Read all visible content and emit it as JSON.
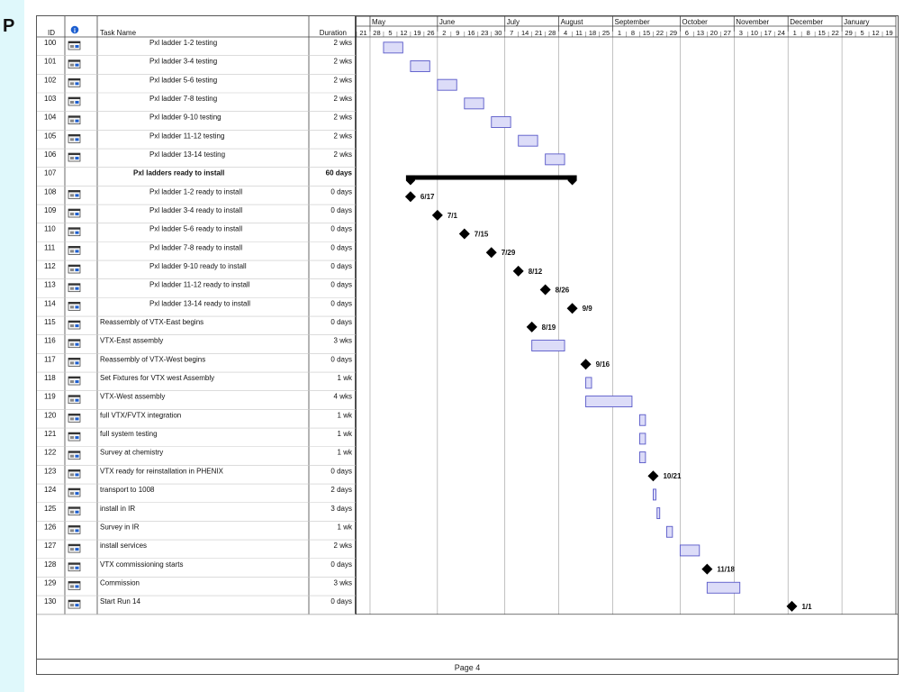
{
  "left_strip": {
    "letter": "P"
  },
  "page": {
    "label": "Page 4"
  },
  "table": {
    "header": {
      "id": "ID",
      "task_name": "Task Name",
      "duration": "Duration"
    },
    "rows": [
      {
        "id": "100",
        "name": "Pxl ladder 1-2 testing",
        "indent": 2,
        "bold": false,
        "duration": "2 wks"
      },
      {
        "id": "101",
        "name": "Pxl ladder 3-4 testing",
        "indent": 2,
        "bold": false,
        "duration": "2 wks"
      },
      {
        "id": "102",
        "name": "Pxl ladder 5-6 testing",
        "indent": 2,
        "bold": false,
        "duration": "2 wks"
      },
      {
        "id": "103",
        "name": "Pxl ladder 7-8 testing",
        "indent": 2,
        "bold": false,
        "duration": "2 wks"
      },
      {
        "id": "104",
        "name": "Pxl ladder 9-10 testing",
        "indent": 2,
        "bold": false,
        "duration": "2 wks"
      },
      {
        "id": "105",
        "name": "Pxl ladder 11-12 testing",
        "indent": 2,
        "bold": false,
        "duration": "2 wks"
      },
      {
        "id": "106",
        "name": "Pxl ladder 13-14 testing",
        "indent": 2,
        "bold": false,
        "duration": "2 wks"
      },
      {
        "id": "107",
        "name": "Pxl ladders ready to install",
        "indent": 1,
        "bold": true,
        "duration": "60 days",
        "summary": true
      },
      {
        "id": "108",
        "name": "Pxl ladder 1-2 ready to install",
        "indent": 2,
        "bold": false,
        "duration": "0 days"
      },
      {
        "id": "109",
        "name": "Pxl ladder 3-4 ready to install",
        "indent": 2,
        "bold": false,
        "duration": "0 days"
      },
      {
        "id": "110",
        "name": "Pxl ladder 5-6  ready to install",
        "indent": 2,
        "bold": false,
        "duration": "0 days"
      },
      {
        "id": "111",
        "name": "Pxl ladder 7-8  ready to install",
        "indent": 2,
        "bold": false,
        "duration": "0 days"
      },
      {
        "id": "112",
        "name": "Pxl ladder 9-10  ready to install",
        "indent": 2,
        "bold": false,
        "duration": "0 days"
      },
      {
        "id": "113",
        "name": "Pxl ladder 11-12  ready to install",
        "indent": 2,
        "bold": false,
        "duration": "0 days"
      },
      {
        "id": "114",
        "name": "Pxl ladder 13-14  ready to install",
        "indent": 2,
        "bold": false,
        "duration": "0 days"
      },
      {
        "id": "115",
        "name": "Reassembly of VTX-East begins",
        "indent": 0,
        "bold": false,
        "duration": "0 days"
      },
      {
        "id": "116",
        "name": "VTX-East assembly",
        "indent": 0,
        "bold": false,
        "duration": "3 wks"
      },
      {
        "id": "117",
        "name": "Reassembly of VTX-West begins",
        "indent": 0,
        "bold": false,
        "duration": "0 days"
      },
      {
        "id": "118",
        "name": "Set Fixtures for VTX west Assembly",
        "indent": 0,
        "bold": false,
        "duration": "1 wk"
      },
      {
        "id": "119",
        "name": "VTX-West assembly",
        "indent": 0,
        "bold": false,
        "duration": "4 wks"
      },
      {
        "id": "120",
        "name": "full VTX/FVTX integration",
        "indent": 0,
        "bold": false,
        "duration": "1 wk"
      },
      {
        "id": "121",
        "name": "full system testing",
        "indent": 0,
        "bold": false,
        "duration": "1 wk"
      },
      {
        "id": "122",
        "name": "Survey at chemistry",
        "indent": 0,
        "bold": false,
        "duration": "1 wk"
      },
      {
        "id": "123",
        "name": "VTX ready for reinstallation in PHENIX",
        "indent": 0,
        "bold": false,
        "duration": "0 days"
      },
      {
        "id": "124",
        "name": "transport to 1008",
        "indent": 0,
        "bold": false,
        "duration": "2 days"
      },
      {
        "id": "125",
        "name": "install in IR",
        "indent": 0,
        "bold": false,
        "duration": "3 days"
      },
      {
        "id": "126",
        "name": "Survey in IR",
        "indent": 0,
        "bold": false,
        "duration": "1 wk"
      },
      {
        "id": "127",
        "name": "install services",
        "indent": 0,
        "bold": false,
        "duration": "2 wks"
      },
      {
        "id": "128",
        "name": "VTX  commissioning starts",
        "indent": 0,
        "bold": false,
        "duration": "0 days"
      },
      {
        "id": "129",
        "name": "Commission",
        "indent": 0,
        "bold": false,
        "duration": "3 wks"
      },
      {
        "id": "130",
        "name": "Start Run 14",
        "indent": 0,
        "bold": false,
        "duration": "0 days"
      }
    ]
  },
  "timescale": {
    "months": [
      "May",
      "June",
      "July",
      "August",
      "September",
      "October",
      "November",
      "December",
      "January"
    ],
    "week_starts": [
      "21",
      "28",
      "5",
      "12",
      "19",
      "26",
      "2",
      "9",
      "16",
      "23",
      "30",
      "7",
      "14",
      "21",
      "28",
      "4",
      "11",
      "18",
      "25",
      "1",
      "8",
      "15",
      "22",
      "29",
      "6",
      "13",
      "20",
      "27",
      "3",
      "10",
      "17",
      "24",
      "1",
      "8",
      "15",
      "22",
      "29",
      "5",
      "12",
      "19"
    ]
  },
  "colors": {
    "bar_fill": "#dcdcf8",
    "bar_stroke": "#5858c8",
    "milestone": "#000000",
    "summary": "#000000",
    "grid": "#999999",
    "row_line": "#c8c8c8"
  },
  "chart_data": {
    "type": "gantt",
    "tasks": [
      {
        "id": "100",
        "kind": "task",
        "start": "2013-06-03",
        "end": "2013-06-14"
      },
      {
        "id": "101",
        "kind": "task",
        "start": "2013-06-17",
        "end": "2013-06-28"
      },
      {
        "id": "102",
        "kind": "task",
        "start": "2013-07-01",
        "end": "2013-07-12"
      },
      {
        "id": "103",
        "kind": "task",
        "start": "2013-07-15",
        "end": "2013-07-26"
      },
      {
        "id": "104",
        "kind": "task",
        "start": "2013-07-29",
        "end": "2013-08-09"
      },
      {
        "id": "105",
        "kind": "task",
        "start": "2013-08-12",
        "end": "2013-08-23"
      },
      {
        "id": "106",
        "kind": "task",
        "start": "2013-08-26",
        "end": "2013-09-06"
      },
      {
        "id": "107",
        "kind": "summary",
        "start": "2013-06-17",
        "end": "2013-09-09"
      },
      {
        "id": "108",
        "kind": "milestone",
        "date": "2013-06-17",
        "label": "6/17"
      },
      {
        "id": "109",
        "kind": "milestone",
        "date": "2013-07-01",
        "label": "7/1"
      },
      {
        "id": "110",
        "kind": "milestone",
        "date": "2013-07-15",
        "label": "7/15"
      },
      {
        "id": "111",
        "kind": "milestone",
        "date": "2013-07-29",
        "label": "7/29"
      },
      {
        "id": "112",
        "kind": "milestone",
        "date": "2013-08-12",
        "label": "8/12"
      },
      {
        "id": "113",
        "kind": "milestone",
        "date": "2013-08-26",
        "label": "8/26"
      },
      {
        "id": "114",
        "kind": "milestone",
        "date": "2013-09-09",
        "label": "9/9"
      },
      {
        "id": "115",
        "kind": "milestone",
        "date": "2013-08-19",
        "label": "8/19"
      },
      {
        "id": "116",
        "kind": "task",
        "start": "2013-08-19",
        "end": "2013-09-06"
      },
      {
        "id": "117",
        "kind": "milestone",
        "date": "2013-09-16",
        "label": "9/16"
      },
      {
        "id": "118",
        "kind": "task",
        "start": "2013-09-16",
        "end": "2013-09-20"
      },
      {
        "id": "119",
        "kind": "task",
        "start": "2013-09-16",
        "end": "2013-10-11"
      },
      {
        "id": "120",
        "kind": "task",
        "start": "2013-10-14",
        "end": "2013-10-18"
      },
      {
        "id": "121",
        "kind": "task",
        "start": "2013-10-14",
        "end": "2013-10-18"
      },
      {
        "id": "122",
        "kind": "task",
        "start": "2013-10-14",
        "end": "2013-10-18"
      },
      {
        "id": "123",
        "kind": "milestone",
        "date": "2013-10-21",
        "label": "10/21"
      },
      {
        "id": "124",
        "kind": "task",
        "start": "2013-10-21",
        "end": "2013-10-22"
      },
      {
        "id": "125",
        "kind": "task",
        "start": "2013-10-23",
        "end": "2013-10-25"
      },
      {
        "id": "126",
        "kind": "task",
        "start": "2013-10-28",
        "end": "2013-11-01"
      },
      {
        "id": "127",
        "kind": "task",
        "start": "2013-11-04",
        "end": "2013-11-15"
      },
      {
        "id": "128",
        "kind": "milestone",
        "date": "2013-11-18",
        "label": "11/18"
      },
      {
        "id": "129",
        "kind": "task",
        "start": "2013-11-18",
        "end": "2013-12-06"
      },
      {
        "id": "130",
        "kind": "milestone",
        "date": "2014-01-01",
        "label": "1/1"
      }
    ]
  }
}
